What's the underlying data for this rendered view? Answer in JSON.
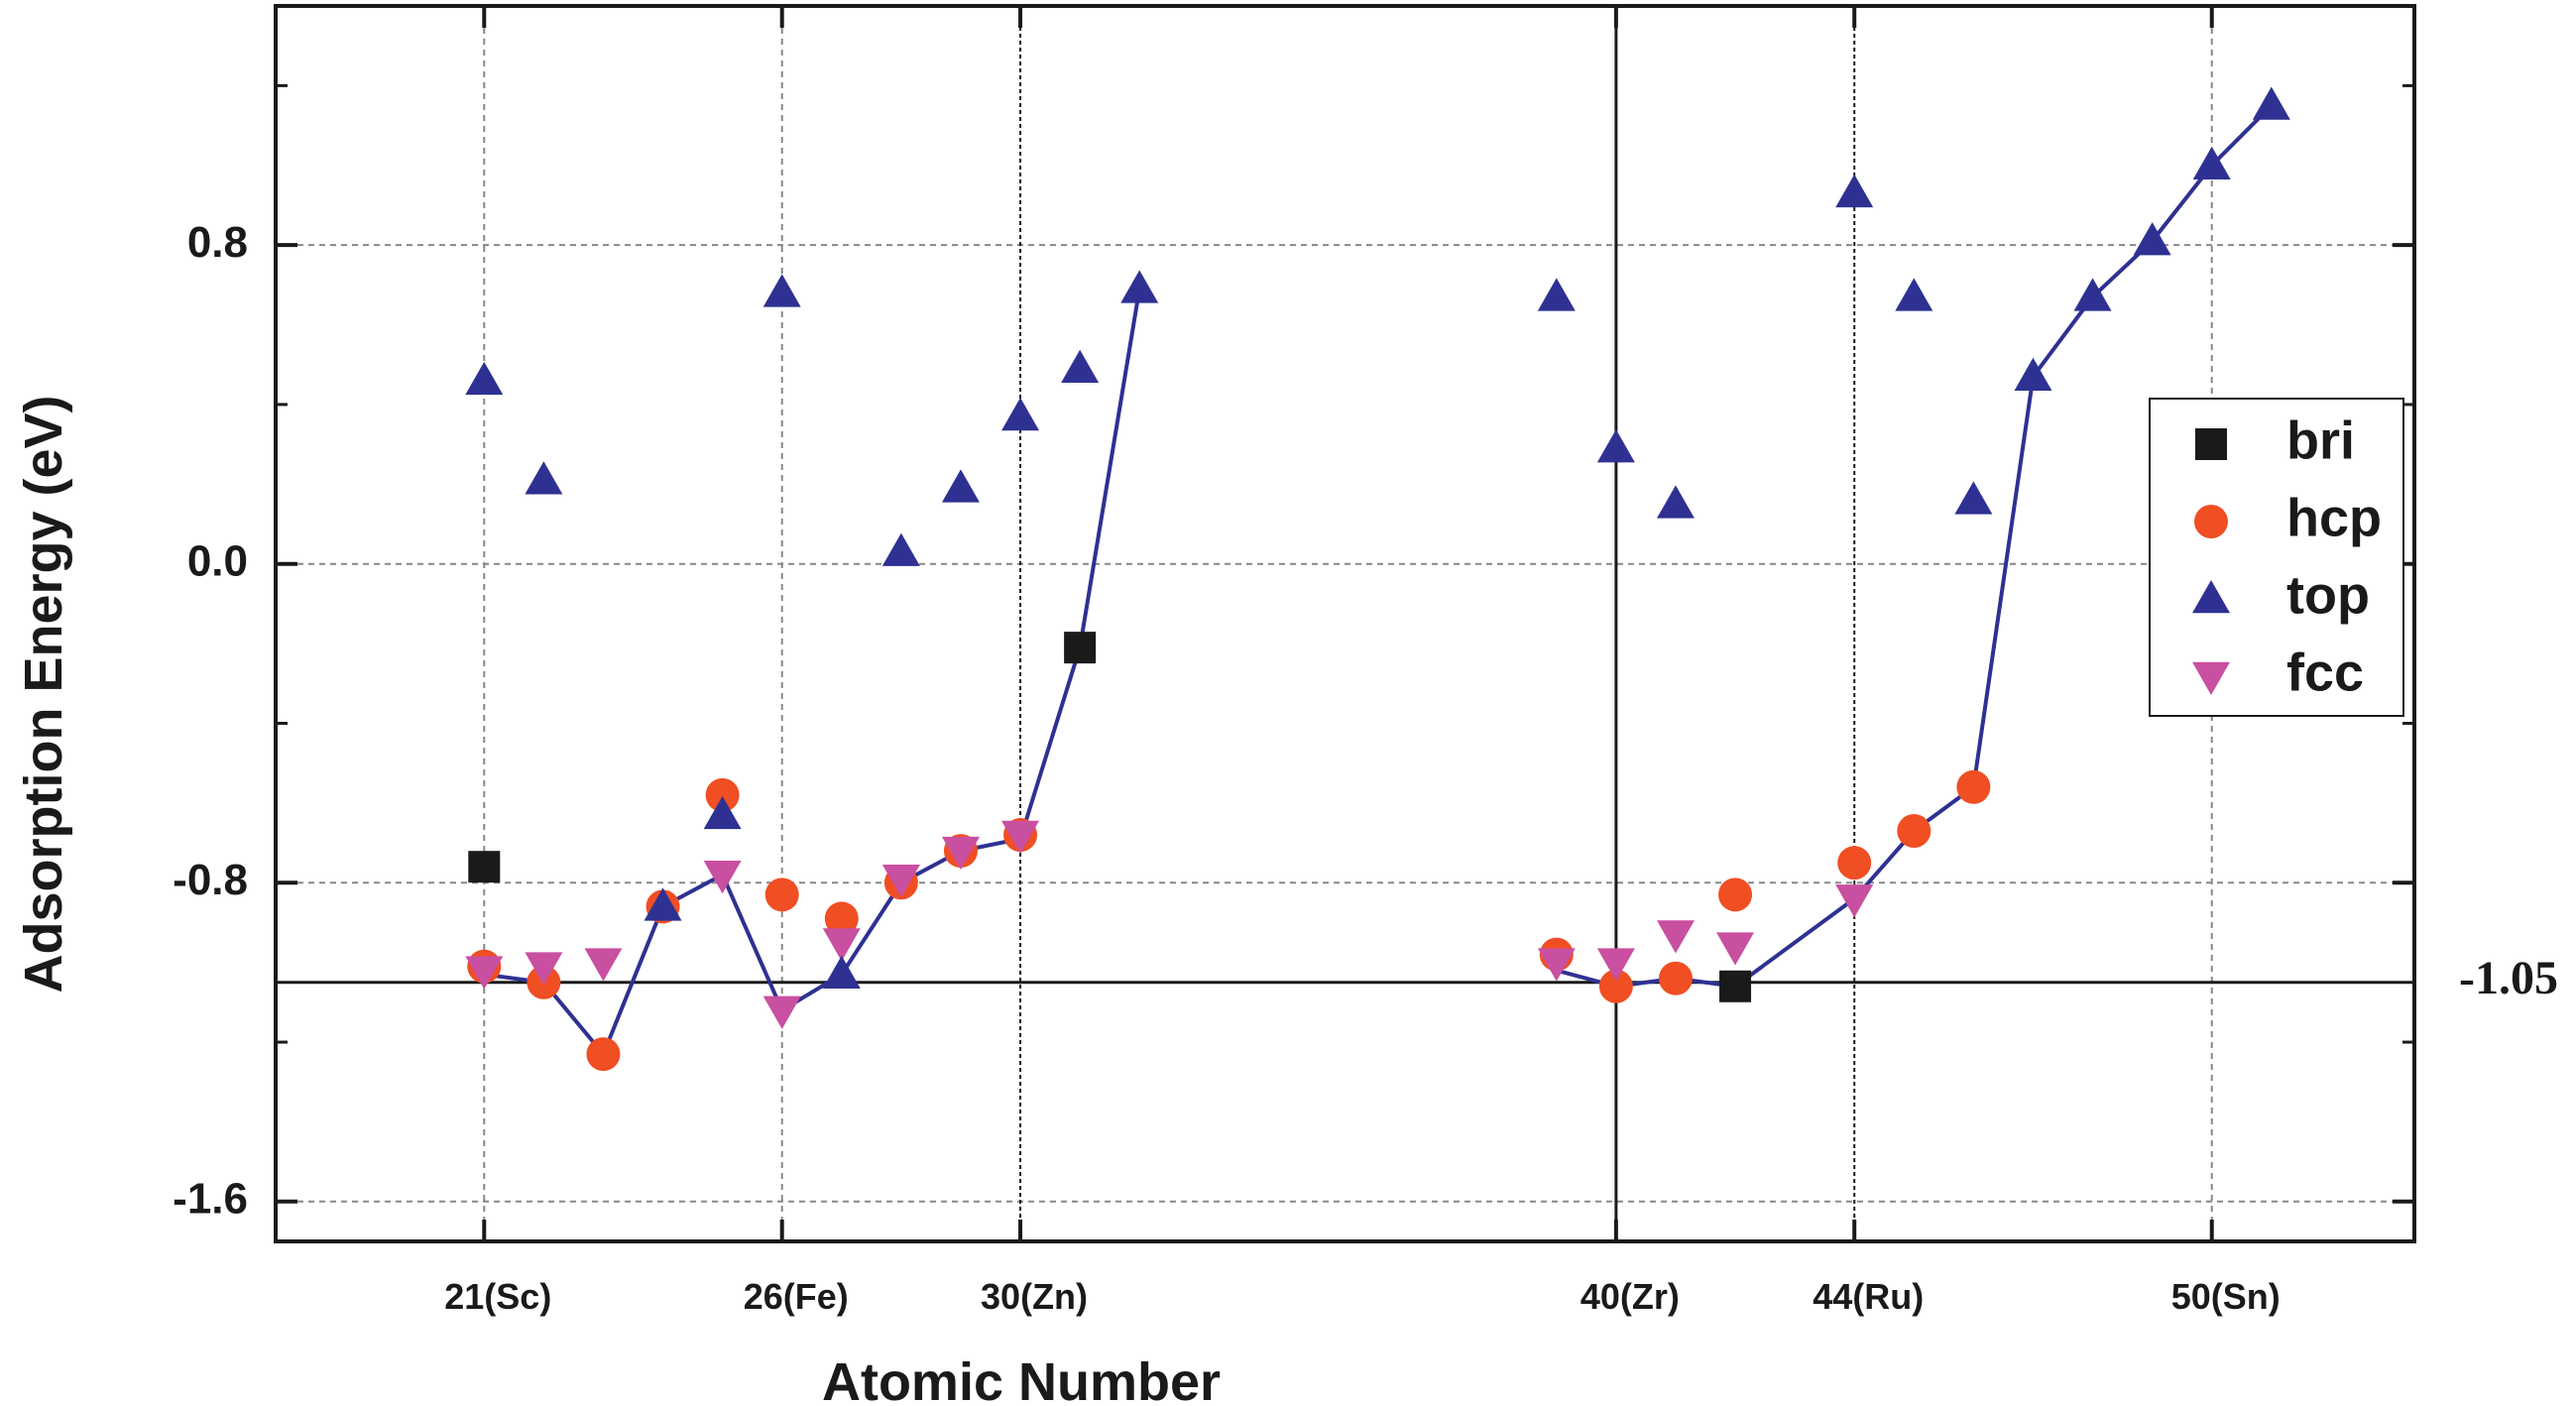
{
  "chart_data": {
    "type": "scatter",
    "title": "",
    "xlabel": "Atomic Number",
    "ylabel": "Adsorption Energy (eV)",
    "xlim": [
      17.5,
      53.4
    ],
    "ylim": [
      -1.7,
      1.4
    ],
    "yticks": [
      -1.6,
      -0.8,
      0.0,
      0.8
    ],
    "ytick_labels": [
      "-1.6",
      "-0.8",
      "0.0",
      "0.8"
    ],
    "xticks": [
      {
        "pos": 21,
        "label": "21(Sc)"
      },
      {
        "pos": 26,
        "label": "26(Fe)"
      },
      {
        "pos": 30,
        "label": "30(Zn)"
      },
      {
        "pos": 40,
        "label": "40(Zr)"
      },
      {
        "pos": 44,
        "label": "44(Ru)"
      },
      {
        "pos": 50,
        "label": "50(Sn)"
      }
    ],
    "grid": true,
    "legend_position": "right",
    "reference_line": {
      "y": -1.05,
      "label": "-1.05"
    },
    "divider_x": 40,
    "series": [
      {
        "name": "bri",
        "marker": "square",
        "color": "#1a1a1a",
        "points": [
          [
            21,
            -0.76
          ],
          [
            31,
            -0.21
          ],
          [
            42,
            -1.06
          ]
        ]
      },
      {
        "name": "hcp",
        "marker": "circle",
        "color": "#f04e23",
        "points": [
          [
            21,
            -1.01
          ],
          [
            22,
            -1.05
          ],
          [
            23,
            -1.23
          ],
          [
            24,
            -0.86
          ],
          [
            25,
            -0.58
          ],
          [
            26,
            -0.83
          ],
          [
            27,
            -0.89
          ],
          [
            28,
            -0.8
          ],
          [
            29,
            -0.72
          ],
          [
            30,
            -0.68
          ],
          [
            39,
            -0.98
          ],
          [
            40,
            -1.06
          ],
          [
            41,
            -1.04
          ],
          [
            42,
            -0.83
          ],
          [
            44,
            -0.75
          ],
          [
            45,
            -0.67
          ],
          [
            46,
            -0.56
          ]
        ]
      },
      {
        "name": "top",
        "marker": "triangle-up",
        "color": "#2e3192",
        "points": [
          [
            21,
            0.46
          ],
          [
            22,
            0.21
          ],
          [
            23,
            null
          ],
          [
            24,
            -0.86
          ],
          [
            25,
            -0.63
          ],
          [
            26,
            0.68
          ],
          [
            27,
            -1.03
          ],
          [
            28,
            0.03
          ],
          [
            29,
            0.19
          ],
          [
            30,
            0.37
          ],
          [
            31,
            0.49
          ],
          [
            32,
            0.69
          ],
          [
            39,
            0.67
          ],
          [
            40,
            0.29
          ],
          [
            41,
            0.15
          ],
          [
            44,
            0.93
          ],
          [
            45,
            0.67
          ],
          [
            46,
            0.16
          ],
          [
            47,
            0.47
          ],
          [
            48,
            0.67
          ],
          [
            49,
            0.81
          ],
          [
            50,
            1.0
          ],
          [
            51,
            1.15
          ]
        ]
      },
      {
        "name": "fcc",
        "marker": "triangle-down",
        "color": "#c94fa0",
        "points": [
          [
            21,
            -1.02
          ],
          [
            22,
            -1.01
          ],
          [
            23,
            -1.0
          ],
          [
            25,
            -0.78
          ],
          [
            26,
            -1.12
          ],
          [
            27,
            -0.95
          ],
          [
            28,
            -0.79
          ],
          [
            29,
            -0.72
          ],
          [
            30,
            -0.68
          ],
          [
            39,
            -1.0
          ],
          [
            40,
            -1.0
          ],
          [
            41,
            -0.93
          ],
          [
            42,
            -0.96
          ],
          [
            44,
            -0.84
          ]
        ]
      }
    ],
    "line_segments": [
      {
        "color": "#2e3192",
        "points": [
          [
            21,
            -1.03
          ],
          [
            22,
            -1.05
          ],
          [
            23,
            -1.23
          ],
          [
            24,
            -0.86
          ],
          [
            25,
            -0.78
          ],
          [
            26,
            -1.12
          ],
          [
            27,
            -1.03
          ],
          [
            28,
            -0.8
          ],
          [
            29,
            -0.72
          ],
          [
            30,
            -0.69
          ],
          [
            31,
            -0.21
          ],
          [
            32,
            0.69
          ]
        ]
      },
      {
        "color": "#2e3192",
        "points": [
          [
            39,
            -1.02
          ],
          [
            40,
            -1.06
          ],
          [
            41,
            -1.04
          ],
          [
            42,
            -1.06
          ],
          [
            44,
            -0.84
          ],
          [
            45,
            -0.67
          ],
          [
            46,
            -0.56
          ],
          [
            47,
            0.47
          ],
          [
            48,
            0.67
          ],
          [
            49,
            0.81
          ],
          [
            50,
            1.0
          ],
          [
            51,
            1.15
          ]
        ]
      }
    ]
  }
}
